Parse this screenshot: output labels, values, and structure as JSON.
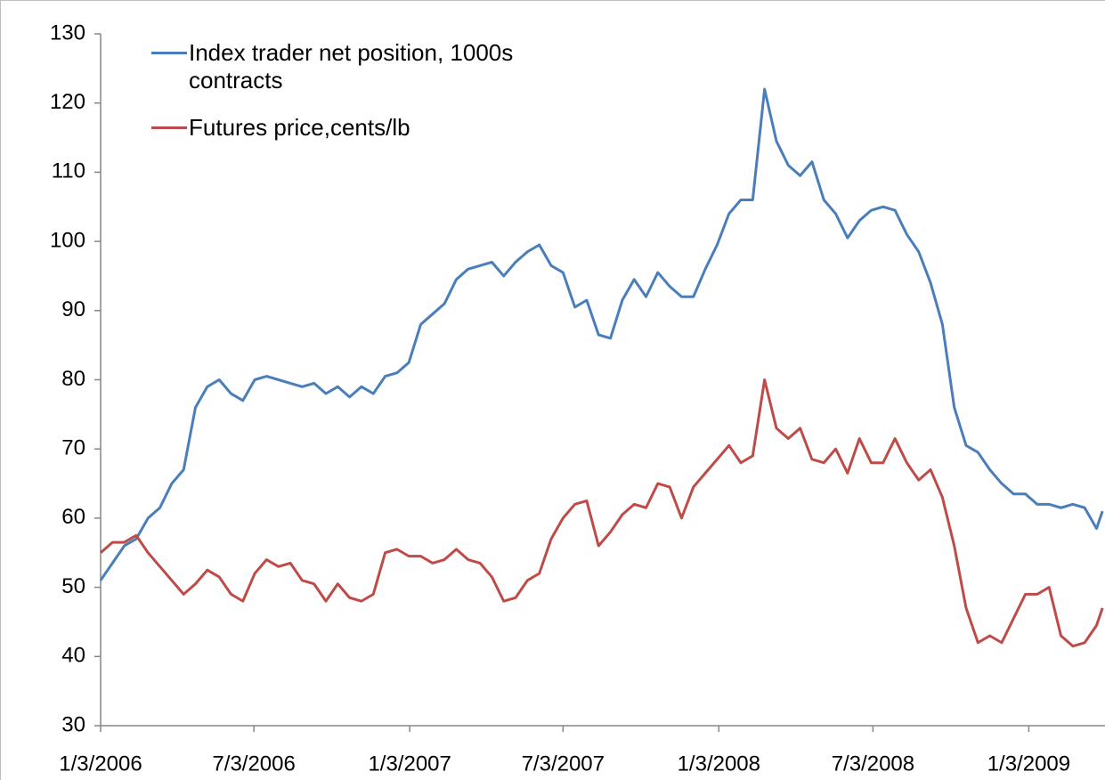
{
  "chart_data": {
    "type": "line",
    "x": [
      "2006-01-03",
      "2006-01-17",
      "2006-01-31",
      "2006-02-14",
      "2006-02-28",
      "2006-03-14",
      "2006-03-28",
      "2006-04-11",
      "2006-04-25",
      "2006-05-09",
      "2006-05-23",
      "2006-06-06",
      "2006-06-20",
      "2006-07-04",
      "2006-07-18",
      "2006-08-01",
      "2006-08-15",
      "2006-08-29",
      "2006-09-12",
      "2006-09-26",
      "2006-10-10",
      "2006-10-24",
      "2006-11-07",
      "2006-11-21",
      "2006-12-05",
      "2006-12-19",
      "2007-01-02",
      "2007-01-16",
      "2007-01-30",
      "2007-02-13",
      "2007-02-27",
      "2007-03-13",
      "2007-03-27",
      "2007-04-10",
      "2007-04-24",
      "2007-05-08",
      "2007-05-22",
      "2007-06-05",
      "2007-06-19",
      "2007-07-03",
      "2007-07-17",
      "2007-07-31",
      "2007-08-14",
      "2007-08-28",
      "2007-09-11",
      "2007-09-25",
      "2007-10-09",
      "2007-10-23",
      "2007-11-06",
      "2007-11-20",
      "2007-12-04",
      "2007-12-18",
      "2008-01-01",
      "2008-01-15",
      "2008-01-29",
      "2008-02-12",
      "2008-02-26",
      "2008-03-11",
      "2008-03-25",
      "2008-04-08",
      "2008-04-22",
      "2008-05-06",
      "2008-05-20",
      "2008-06-03",
      "2008-06-17",
      "2008-07-01",
      "2008-07-15",
      "2008-07-29",
      "2008-08-12",
      "2008-08-26",
      "2008-09-09",
      "2008-09-23",
      "2008-10-07",
      "2008-10-21",
      "2008-11-04",
      "2008-11-18",
      "2008-12-02",
      "2008-12-16",
      "2008-12-30",
      "2009-01-13",
      "2009-01-27",
      "2009-02-10",
      "2009-02-24",
      "2009-03-10",
      "2009-03-24",
      "2009-03-31"
    ],
    "series": [
      {
        "name": "Index trader net position, 1000s contracts",
        "color": "#4a7ebb",
        "values": [
          51,
          53.5,
          56,
          57,
          60,
          61.5,
          65,
          67,
          76,
          79,
          80,
          78,
          77,
          80,
          80.5,
          80,
          79.5,
          79,
          79.5,
          78,
          79,
          77.5,
          79,
          78,
          80.5,
          81,
          82.5,
          88,
          89.5,
          91,
          94.5,
          96,
          96.5,
          97,
          95,
          97,
          98.5,
          99.5,
          96.5,
          95.5,
          90.5,
          91.5,
          86.5,
          86,
          91.5,
          94.5,
          92,
          95.5,
          93.5,
          92,
          92,
          96,
          99.5,
          104,
          106,
          106,
          122,
          114.5,
          111,
          109.5,
          111.5,
          106,
          104,
          100.5,
          103,
          104.5,
          105,
          104.5,
          101,
          98.5,
          94,
          88,
          76,
          70.5,
          69.5,
          67,
          65,
          63.5,
          63.5,
          62,
          62,
          61.5,
          62,
          61.5,
          58.5,
          61
        ]
      },
      {
        "name": "Futures price,cents/lb",
        "color": "#be4b48",
        "values": [
          55,
          56.5,
          56.5,
          57.5,
          55,
          53,
          51,
          49,
          50.5,
          52.5,
          51.5,
          49,
          48,
          52,
          54,
          53,
          53.5,
          51,
          50.5,
          48,
          50.5,
          48.5,
          48,
          49,
          55,
          55.5,
          54.5,
          54.5,
          53.5,
          54,
          55.5,
          54,
          53.5,
          51.5,
          48,
          48.5,
          51,
          52,
          57,
          60,
          62,
          62.5,
          56,
          58,
          60.5,
          62,
          61.5,
          65,
          64.5,
          60,
          64.5,
          66.5,
          68.5,
          70.5,
          68,
          69,
          80,
          73,
          71.5,
          73,
          68.5,
          68,
          70,
          66.5,
          71.5,
          68,
          68,
          71.5,
          68,
          65.5,
          67,
          63,
          56,
          47,
          42,
          43,
          42,
          45.5,
          49,
          49,
          50,
          43,
          41.5,
          42,
          44.5,
          47
        ]
      }
    ],
    "xlim": [
      "2006-01-03",
      "2009-04-03"
    ],
    "xticks": [
      {
        "value": "2006-01-03",
        "label": "1/3/2006"
      },
      {
        "value": "2006-07-03",
        "label": "7/3/2006"
      },
      {
        "value": "2007-01-03",
        "label": "1/3/2007"
      },
      {
        "value": "2007-07-03",
        "label": "7/3/2007"
      },
      {
        "value": "2008-01-03",
        "label": "1/3/2008"
      },
      {
        "value": "2008-07-03",
        "label": "7/3/2008"
      },
      {
        "value": "2009-01-03",
        "label": "1/3/2009"
      }
    ],
    "ylim": [
      30,
      130
    ],
    "yticks": [
      30,
      40,
      50,
      60,
      70,
      80,
      90,
      100,
      110,
      120,
      130
    ],
    "grid": false,
    "legend": "upper left"
  }
}
